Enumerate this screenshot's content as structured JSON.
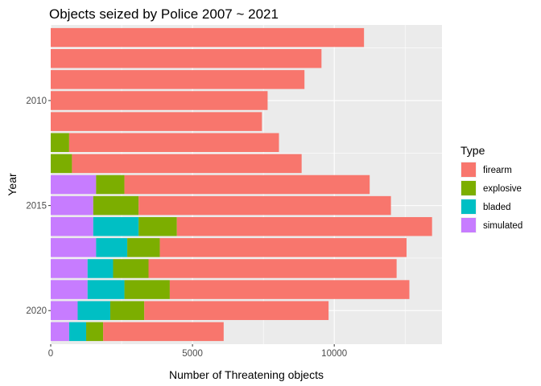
{
  "chart_data": {
    "type": "bar",
    "orientation": "horizontal",
    "stacked": true,
    "title": "Objects seized by Police 2007 ~ 2021",
    "xlabel": "Number of Threatening objects",
    "ylabel": "Year",
    "xlim": [
      0,
      13800
    ],
    "ylim": [
      2021.6,
      2006.4
    ],
    "x_ticks": [
      0,
      5000,
      10000
    ],
    "y_ticks": [
      2010,
      2015,
      2020
    ],
    "grid": true,
    "legend": {
      "title": "Type",
      "position": "right"
    },
    "years": [
      2007,
      2008,
      2009,
      2010,
      2011,
      2012,
      2013,
      2014,
      2015,
      2016,
      2017,
      2018,
      2019,
      2020,
      2021
    ],
    "series": [
      {
        "name": "simulated",
        "color": "#C77CFF",
        "values": [
          0,
          0,
          0,
          0,
          0,
          0,
          0,
          1600,
          1500,
          1500,
          1600,
          1300,
          1300,
          950,
          650
        ]
      },
      {
        "name": "bladed",
        "color": "#00BFC4",
        "values": [
          0,
          0,
          0,
          0,
          0,
          0,
          0,
          0,
          0,
          1600,
          1100,
          900,
          1300,
          1150,
          600
        ]
      },
      {
        "name": "explosive",
        "color": "#7CAE00",
        "values": [
          0,
          0,
          0,
          0,
          0,
          650,
          750,
          1000,
          1600,
          1350,
          1150,
          1250,
          1600,
          1200,
          600
        ]
      },
      {
        "name": "firearm",
        "color": "#F8766D",
        "values": [
          11050,
          9550,
          8950,
          7650,
          7450,
          7400,
          8100,
          8650,
          8900,
          9000,
          8700,
          8750,
          8450,
          6500,
          4250
        ]
      }
    ]
  }
}
